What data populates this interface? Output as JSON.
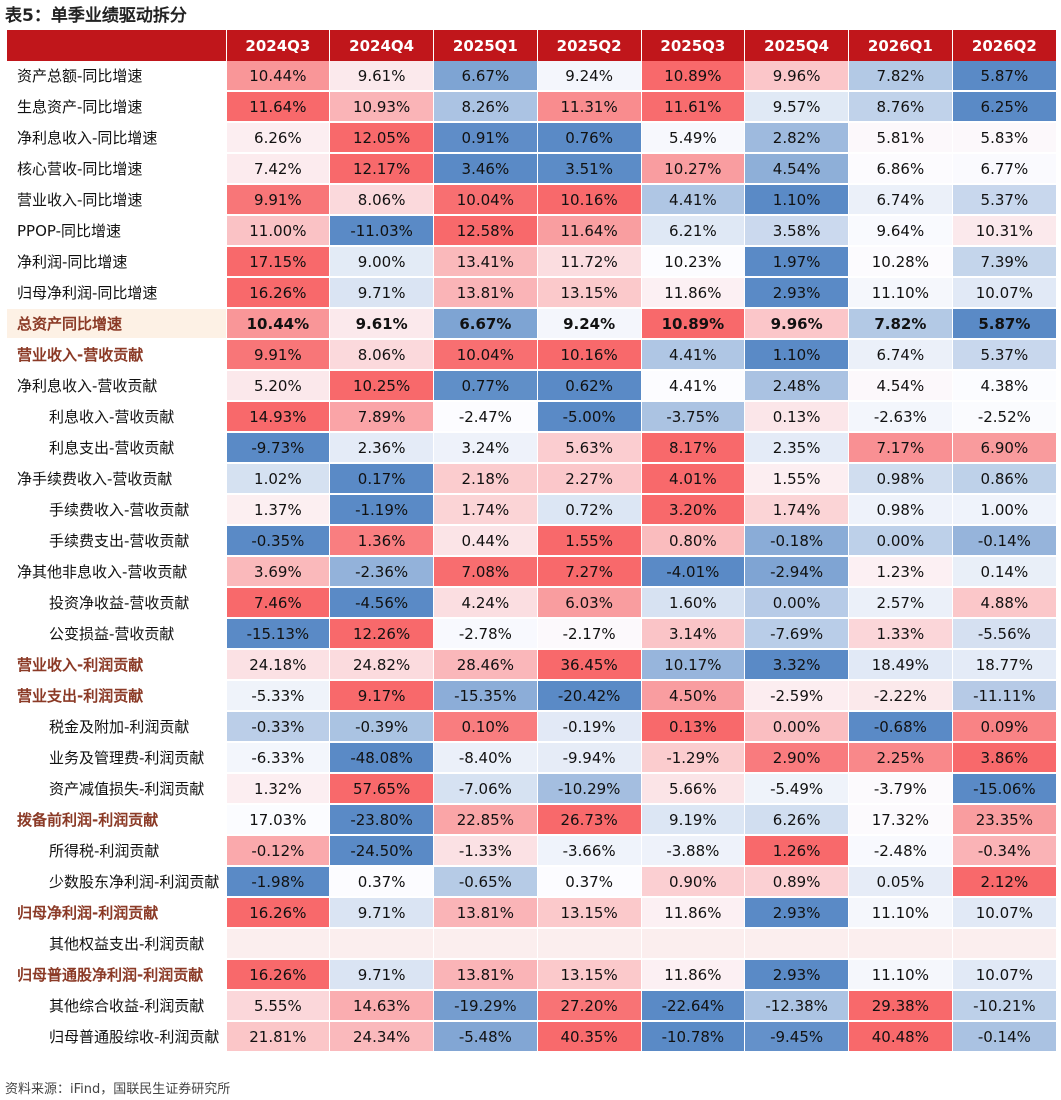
{
  "title": "表5：单季业绩驱动拆分",
  "columns": [
    "2024Q3",
    "2024Q4",
    "2025Q1",
    "2025Q2",
    "2025Q3",
    "2025Q4",
    "2026Q1",
    "2026Q2"
  ],
  "rows": [
    {
      "label": "资产总额-同比增速",
      "style": "normal",
      "values": [
        "10.44%",
        "9.61%",
        "6.67%",
        "9.24%",
        "10.89%",
        "9.96%",
        "7.82%",
        "5.87%"
      ]
    },
    {
      "label": "生息资产-同比增速",
      "style": "normal",
      "values": [
        "11.64%",
        "10.93%",
        "8.26%",
        "11.31%",
        "11.61%",
        "9.57%",
        "8.76%",
        "6.25%"
      ]
    },
    {
      "label": "净利息收入-同比增速",
      "style": "normal",
      "values": [
        "6.26%",
        "12.05%",
        "0.91%",
        "0.76%",
        "5.49%",
        "2.82%",
        "5.81%",
        "5.83%"
      ]
    },
    {
      "label": "核心营收-同比增速",
      "style": "normal",
      "values": [
        "7.42%",
        "12.17%",
        "3.46%",
        "3.51%",
        "10.27%",
        "4.54%",
        "6.86%",
        "6.77%"
      ]
    },
    {
      "label": "营业收入-同比增速",
      "style": "normal",
      "values": [
        "9.91%",
        "8.06%",
        "10.04%",
        "10.16%",
        "4.41%",
        "1.10%",
        "6.74%",
        "5.37%"
      ]
    },
    {
      "label": "PPOP-同比增速",
      "style": "normal",
      "values": [
        "11.00%",
        "-11.03%",
        "12.58%",
        "11.64%",
        "6.21%",
        "3.58%",
        "9.64%",
        "10.31%"
      ]
    },
    {
      "label": "净利润-同比增速",
      "style": "normal",
      "values": [
        "17.15%",
        "9.00%",
        "13.41%",
        "11.72%",
        "10.23%",
        "1.97%",
        "10.28%",
        "7.39%"
      ]
    },
    {
      "label": "归母净利润-同比增速",
      "style": "normal",
      "values": [
        "16.26%",
        "9.71%",
        "13.81%",
        "13.15%",
        "11.86%",
        "2.93%",
        "11.10%",
        "10.07%"
      ]
    },
    {
      "label": "总资产同比增速",
      "style": "bold",
      "sep": true,
      "values": [
        "10.44%",
        "9.61%",
        "6.67%",
        "9.24%",
        "10.89%",
        "9.96%",
        "7.82%",
        "5.87%"
      ]
    },
    {
      "label": "营业收入-营收贡献",
      "style": "hl",
      "values": [
        "9.91%",
        "8.06%",
        "10.04%",
        "10.16%",
        "4.41%",
        "1.10%",
        "6.74%",
        "5.37%"
      ]
    },
    {
      "label": "净利息收入-营收贡献",
      "style": "normal",
      "values": [
        "5.20%",
        "10.25%",
        "0.77%",
        "0.62%",
        "4.41%",
        "2.48%",
        "4.54%",
        "4.38%"
      ]
    },
    {
      "label": "利息收入-营收贡献",
      "style": "indent",
      "values": [
        "14.93%",
        "7.89%",
        "-2.47%",
        "-5.00%",
        "-3.75%",
        "0.13%",
        "-2.63%",
        "-2.52%"
      ]
    },
    {
      "label": "利息支出-营收贡献",
      "style": "indent",
      "values": [
        "-9.73%",
        "2.36%",
        "3.24%",
        "5.63%",
        "8.17%",
        "2.35%",
        "7.17%",
        "6.90%"
      ]
    },
    {
      "label": "净手续费收入-营收贡献",
      "style": "normal",
      "values": [
        "1.02%",
        "0.17%",
        "2.18%",
        "2.27%",
        "4.01%",
        "1.55%",
        "0.98%",
        "0.86%"
      ]
    },
    {
      "label": "手续费收入-营收贡献",
      "style": "indent2",
      "values": [
        "1.37%",
        "-1.19%",
        "1.74%",
        "0.72%",
        "3.20%",
        "1.74%",
        "0.98%",
        "1.00%"
      ]
    },
    {
      "label": "手续费支出-营收贡献",
      "style": "indent2",
      "values": [
        "-0.35%",
        "1.36%",
        "0.44%",
        "1.55%",
        "0.80%",
        "-0.18%",
        "0.00%",
        "-0.14%"
      ]
    },
    {
      "label": "净其他非息收入-营收贡献",
      "style": "normal",
      "values": [
        "3.69%",
        "-2.36%",
        "7.08%",
        "7.27%",
        "-4.01%",
        "-2.94%",
        "1.23%",
        "0.14%"
      ]
    },
    {
      "label": "投资净收益-营收贡献",
      "style": "indent2",
      "values": [
        "7.46%",
        "-4.56%",
        "4.24%",
        "6.03%",
        "1.60%",
        "0.00%",
        "2.57%",
        "4.88%"
      ]
    },
    {
      "label": "公变损益-营收贡献",
      "style": "indent2",
      "values": [
        "-15.13%",
        "12.26%",
        "-2.78%",
        "-2.17%",
        "3.14%",
        "-7.69%",
        "1.33%",
        "-5.56%"
      ]
    },
    {
      "label": "营业收入-利润贡献",
      "style": "hl",
      "sep": true,
      "values": [
        "24.18%",
        "24.82%",
        "28.46%",
        "36.45%",
        "10.17%",
        "3.32%",
        "18.49%",
        "18.77%"
      ]
    },
    {
      "label": "营业支出-利润贡献",
      "style": "hl",
      "values": [
        "-5.33%",
        "9.17%",
        "-15.35%",
        "-20.42%",
        "4.50%",
        "-2.59%",
        "-2.22%",
        "-11.11%"
      ]
    },
    {
      "label": "税金及附加-利润贡献",
      "style": "indent2",
      "values": [
        "-0.33%",
        "-0.39%",
        "0.10%",
        "-0.19%",
        "0.13%",
        "0.00%",
        "-0.68%",
        "0.09%"
      ]
    },
    {
      "label": "业务及管理费-利润贡献",
      "style": "indent2",
      "values": [
        "-6.33%",
        "-48.08%",
        "-8.40%",
        "-9.94%",
        "-1.29%",
        "2.90%",
        "2.25%",
        "3.86%"
      ]
    },
    {
      "label": "资产减值损失-利润贡献",
      "style": "indent2",
      "values": [
        "1.32%",
        "57.65%",
        "-7.06%",
        "-10.29%",
        "5.66%",
        "-5.49%",
        "-3.79%",
        "-15.06%"
      ]
    },
    {
      "label": "拨备前利润-利润贡献",
      "style": "hl",
      "values": [
        "17.03%",
        "-23.80%",
        "22.85%",
        "26.73%",
        "9.19%",
        "6.26%",
        "17.32%",
        "23.35%"
      ]
    },
    {
      "label": "所得税-利润贡献",
      "style": "indent2",
      "values": [
        "-0.12%",
        "-24.50%",
        "-1.33%",
        "-3.66%",
        "-3.88%",
        "1.26%",
        "-2.48%",
        "-0.34%"
      ]
    },
    {
      "label": "少数股东净利润-利润贡献",
      "style": "indent2",
      "values": [
        "-1.98%",
        "0.37%",
        "-0.65%",
        "0.37%",
        "0.90%",
        "0.89%",
        "0.05%",
        "2.12%"
      ]
    },
    {
      "label": "归母净利润-利润贡献",
      "style": "hl",
      "values": [
        "16.26%",
        "9.71%",
        "13.81%",
        "13.15%",
        "11.86%",
        "2.93%",
        "11.10%",
        "10.07%"
      ]
    },
    {
      "label": "其他权益支出-利润贡献",
      "style": "indent2",
      "empty": true,
      "values": [
        "",
        "",
        "",
        "",
        "",
        "",
        "",
        ""
      ]
    },
    {
      "label": "归母普通股净利润-利润贡献",
      "style": "hl",
      "values": [
        "16.26%",
        "9.71%",
        "13.81%",
        "13.15%",
        "11.86%",
        "2.93%",
        "11.10%",
        "10.07%"
      ]
    },
    {
      "label": "其他综合收益-利润贡献",
      "style": "indent2",
      "values": [
        "5.55%",
        "14.63%",
        "-19.29%",
        "27.20%",
        "-22.64%",
        "-12.38%",
        "29.38%",
        "-10.21%"
      ]
    },
    {
      "label": "归母普通股综收-利润贡献",
      "style": "indent2",
      "values": [
        "21.81%",
        "24.34%",
        "-5.48%",
        "40.35%",
        "-10.78%",
        "-9.45%",
        "40.48%",
        "-0.14%"
      ]
    }
  ],
  "heatmap_colors": {
    "high": "#f8696b",
    "mid": "#fcfcff",
    "low": "#5a8ac6"
  },
  "source": "资料来源：iFind，国联民生证券研究所"
}
